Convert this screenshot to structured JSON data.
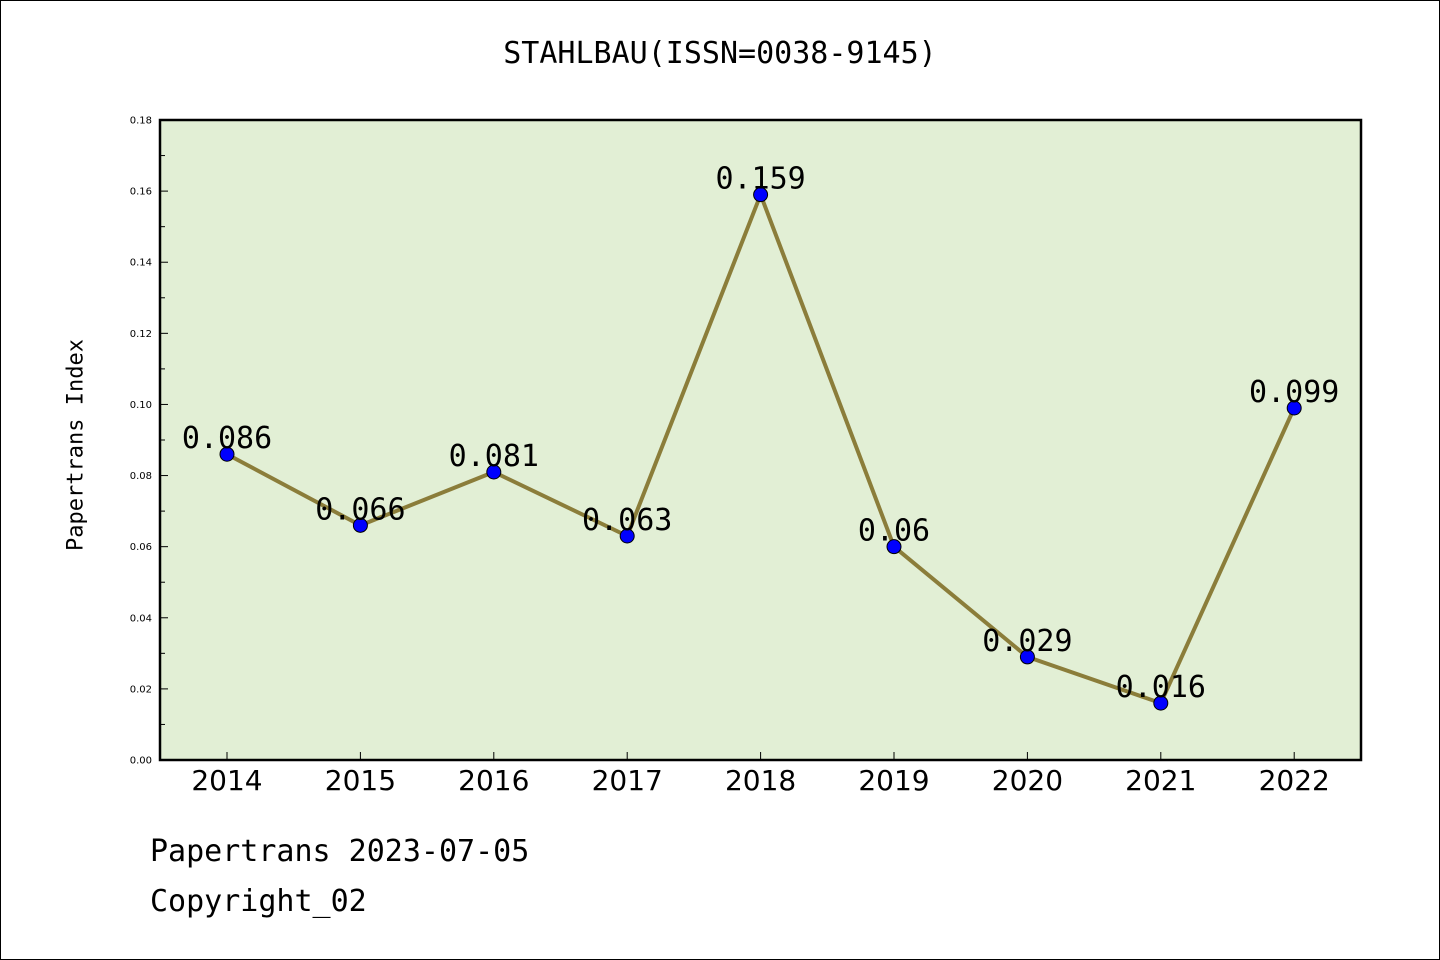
{
  "chart_data": {
    "type": "line",
    "title": "STAHLBAU(ISSN=0038-9145)",
    "xlabel": "",
    "ylabel": "Papertrans Index",
    "x": [
      "2014",
      "2015",
      "2016",
      "2017",
      "2018",
      "2019",
      "2020",
      "2021",
      "2022"
    ],
    "series": [
      {
        "values": [
          0.086,
          0.066,
          0.081,
          0.063,
          0.159,
          0.06,
          0.029,
          0.016,
          0.099
        ],
        "labels": [
          "0.086",
          "0.066",
          "0.081",
          "0.063",
          "0.159",
          "0.06",
          "0.029",
          "0.016",
          "0.099"
        ],
        "line_color": "#8B7D3A",
        "marker_color": "#0000FF"
      }
    ],
    "ylim": [
      0,
      0.18
    ],
    "yticks": [
      "0.00",
      "0.02",
      "0.04",
      "0.06",
      "0.08",
      "0.10",
      "0.12",
      "0.14",
      "0.16",
      "0.18"
    ],
    "plot_background": "#E2EFD5",
    "grid": false
  },
  "footer": {
    "line1": "Papertrans 2023-07-05",
    "line2": "Copyright_02"
  }
}
